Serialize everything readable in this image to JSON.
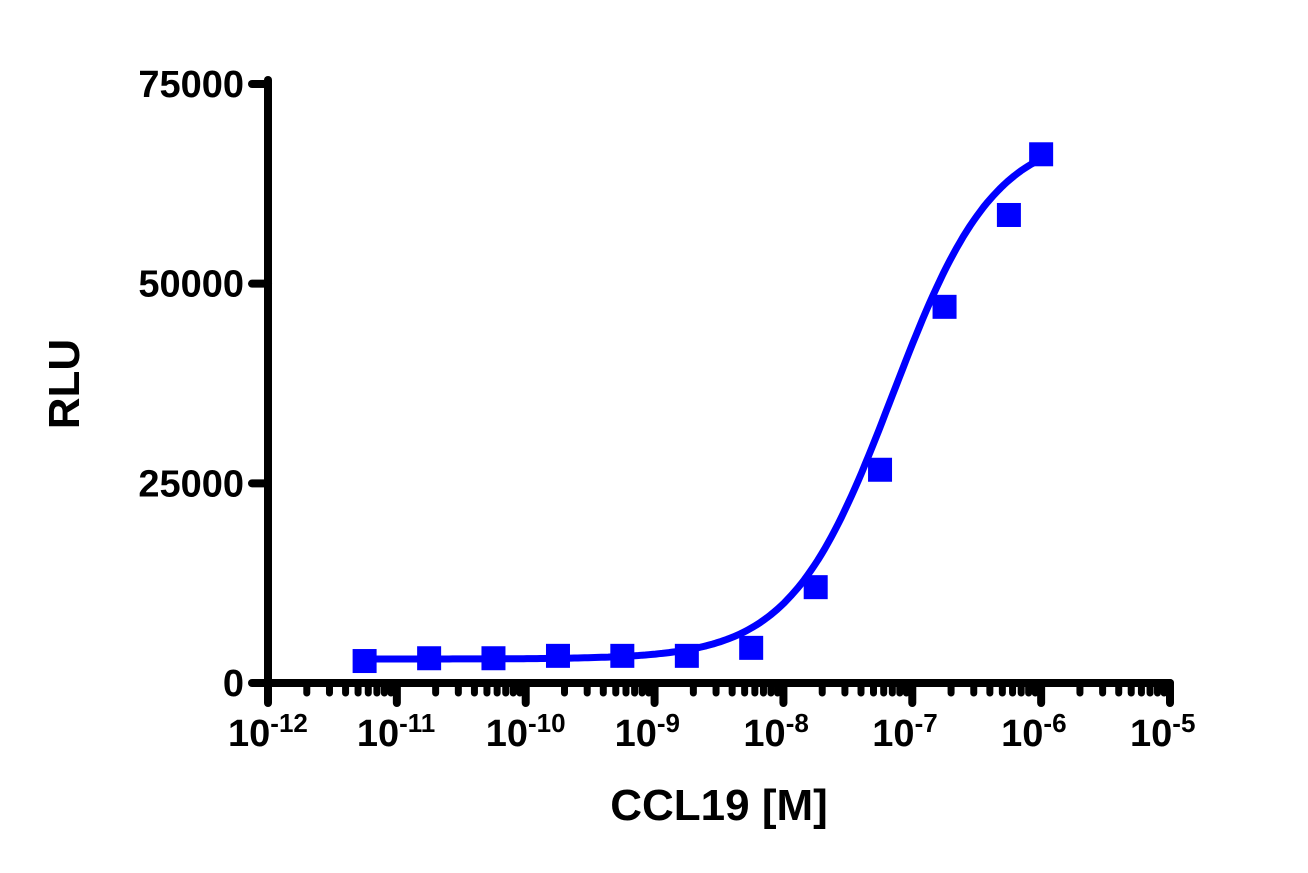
{
  "chart_data": {
    "type": "line",
    "title": "",
    "xlabel": "CCL19 [M]",
    "ylabel": "RLU",
    "x_scale": "log10",
    "xlim": [
      1e-12,
      1e-05
    ],
    "ylim": [
      0,
      75000
    ],
    "x_ticks": [
      {
        "base": "10",
        "exp": "-12"
      },
      {
        "base": "10",
        "exp": "-11"
      },
      {
        "base": "10",
        "exp": "-10"
      },
      {
        "base": "10",
        "exp": "-9"
      },
      {
        "base": "10",
        "exp": "-8"
      },
      {
        "base": "10",
        "exp": "-7"
      },
      {
        "base": "10",
        "exp": "-6"
      },
      {
        "base": "10",
        "exp": "-5"
      }
    ],
    "y_ticks": [
      "0",
      "25000",
      "50000",
      "75000"
    ],
    "grid": false,
    "legend": null,
    "series": [
      {
        "name": "CCL19",
        "color": "#0000ff",
        "marker": "square",
        "fit": "sigmoidal dose-response (4PL)",
        "x": [
          5.62e-12,
          1.78e-11,
          5.62e-11,
          1.78e-10,
          5.62e-10,
          1.78e-09,
          5.62e-09,
          1.78e-08,
          5.62e-08,
          1.78e-07,
          5.62e-07,
          1e-06
        ],
        "y": [
          2750,
          3100,
          3100,
          3400,
          3400,
          3400,
          4400,
          12000,
          26700,
          47100,
          58600,
          66200
        ]
      }
    ]
  },
  "colors": {
    "series": "#0000ff",
    "axis": "#000000",
    "background": "#ffffff"
  }
}
